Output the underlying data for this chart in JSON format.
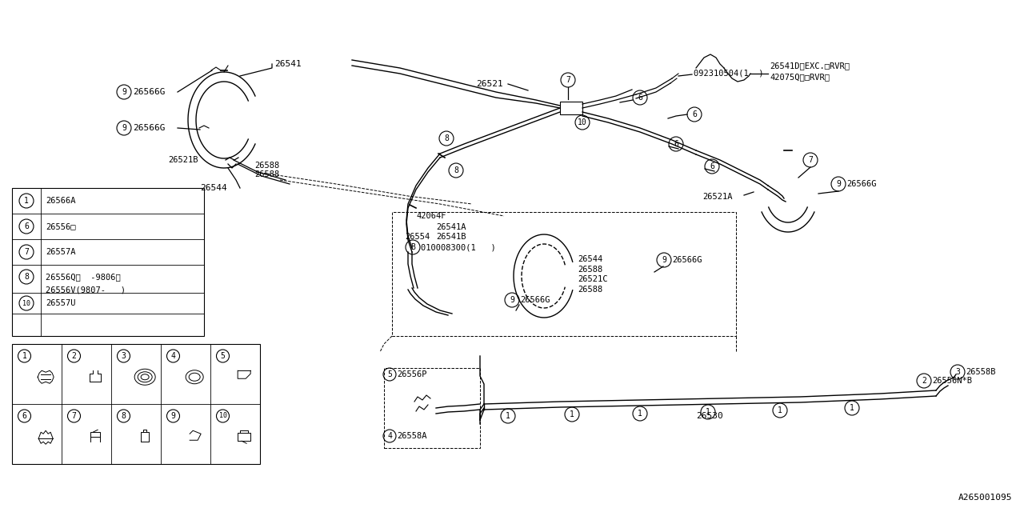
{
  "bg_color": "#ffffff",
  "line_color": "#000000",
  "ref_code": "A265001095",
  "fig_width": 12.8,
  "fig_height": 6.4,
  "legend_rows": [
    {
      "num": "1",
      "code": "26566A"
    },
    {
      "num": "6",
      "code": "26556□"
    },
    {
      "num": "7",
      "code": "26557A"
    },
    {
      "num": "8a",
      "code": "26556Q（  -9806）"
    },
    {
      "num": "8b",
      "code": "26556V(9807-   )"
    },
    {
      "num": "10",
      "code": "26557U"
    }
  ]
}
